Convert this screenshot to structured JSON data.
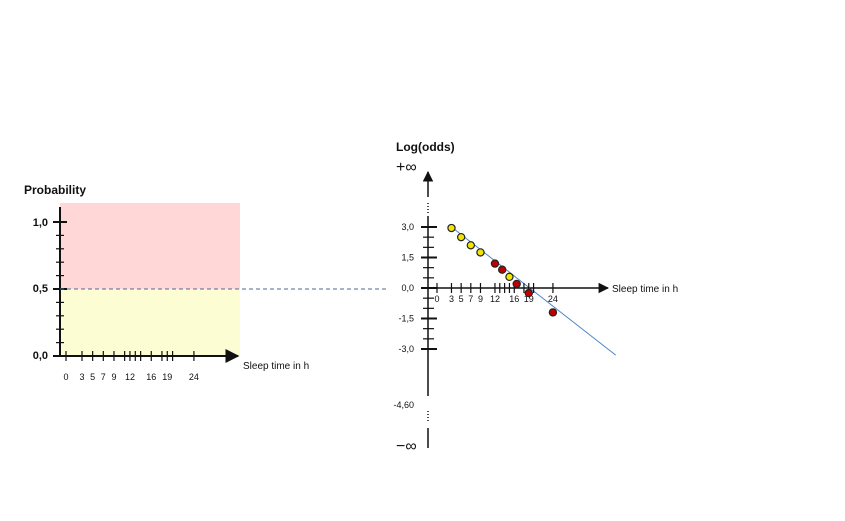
{
  "chart_data": [
    {
      "type": "area",
      "ylabel": "Probability",
      "xlabel": "Sleep time in h",
      "ylim": [
        0,
        1
      ],
      "xlim": [
        0,
        27
      ],
      "y_ticks": [
        "1,0",
        "0,5",
        "0,0"
      ],
      "x_tick_values": [
        0,
        3,
        5,
        7,
        9,
        12,
        16,
        19,
        24
      ],
      "x_tick_labels": [
        "0",
        "3",
        "5",
        "7",
        "9",
        "12",
        "16",
        "19",
        "24"
      ],
      "regions": [
        {
          "from": 0.5,
          "to": 1.0,
          "color": "#ffd7d7"
        },
        {
          "from": 0.0,
          "to": 0.5,
          "color": "#fdfdd3"
        }
      ],
      "threshold": 0.5,
      "threshold_color": "#4a6b95"
    },
    {
      "type": "scatter",
      "ylabel": "Log(odds)",
      "xlabel": "Sleep time in h",
      "top_label": "+∞",
      "bottom_label": "−∞",
      "ylim": [
        -4.6,
        3.0
      ],
      "y_ticks": [
        {
          "value": 3.0,
          "label": "3,0"
        },
        {
          "value": 1.5,
          "label": "1,5"
        },
        {
          "value": 0.0,
          "label": "0,0"
        },
        {
          "value": -1.5,
          "label": "-1,5"
        },
        {
          "value": -3.0,
          "label": "-3,0"
        },
        {
          "value": -4.6,
          "label": "-4,60"
        }
      ],
      "x_tick_values": [
        0,
        3,
        5,
        7,
        9,
        12,
        16,
        19,
        24
      ],
      "x_tick_labels": [
        "0",
        "3",
        "5",
        "7",
        "9",
        "12",
        "16",
        "19",
        "24"
      ],
      "points": [
        {
          "x": 3,
          "y": 2.95,
          "class": "yellow"
        },
        {
          "x": 5,
          "y": 2.5,
          "class": "yellow"
        },
        {
          "x": 7,
          "y": 2.1,
          "class": "yellow"
        },
        {
          "x": 9,
          "y": 1.75,
          "class": "yellow"
        },
        {
          "x": 12,
          "y": 1.2,
          "class": "red"
        },
        {
          "x": 13.5,
          "y": 0.9,
          "class": "red"
        },
        {
          "x": 15,
          "y": 0.55,
          "class": "yellow"
        },
        {
          "x": 16.5,
          "y": 0.2,
          "class": "red"
        },
        {
          "x": 19,
          "y": -0.25,
          "class": "red"
        },
        {
          "x": 24,
          "y": -1.2,
          "class": "red"
        }
      ],
      "fit_line": {
        "x": [
          3,
          37
        ],
        "y": [
          3.0,
          -3.3
        ],
        "color": "#4f86c0"
      },
      "colors": {
        "yellow": "#f2e500",
        "red": "#c00000",
        "outline": "#222222"
      }
    }
  ]
}
